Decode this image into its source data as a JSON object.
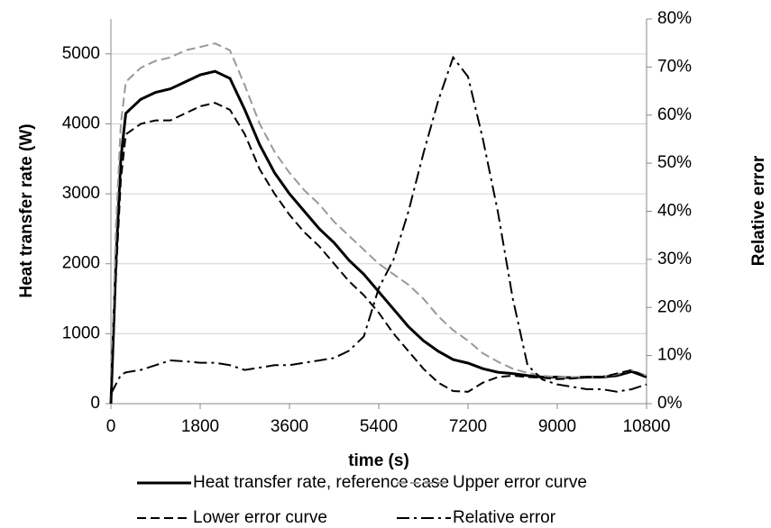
{
  "chart_data": {
    "type": "line",
    "xlabel": "time (s)",
    "ylabel": "Heat transfer rate (W)",
    "y2label": "Relative error",
    "x": [
      0,
      100,
      200,
      300,
      600,
      900,
      1200,
      1500,
      1800,
      2100,
      2400,
      2700,
      3000,
      3300,
      3600,
      3900,
      4200,
      4500,
      4800,
      5100,
      5400,
      5700,
      6000,
      6300,
      6600,
      6900,
      7200,
      7500,
      7800,
      8100,
      8400,
      8700,
      9000,
      9300,
      9600,
      9900,
      10200,
      10500,
      10800
    ],
    "series": [
      {
        "name": "Heat transfer rate, reference case",
        "color": "#000000",
        "style": "solid",
        "values": [
          0,
          2000,
          3500,
          4150,
          4350,
          4450,
          4500,
          4600,
          4700,
          4750,
          4650,
          4200,
          3700,
          3300,
          3000,
          2750,
          2500,
          2300,
          2050,
          1850,
          1600,
          1350,
          1100,
          900,
          750,
          630,
          580,
          500,
          450,
          430,
          400,
          380,
          380,
          370,
          380,
          380,
          400,
          460,
          380
        ]
      },
      {
        "name": "Upper error curve",
        "color": "#999999",
        "style": "dashed",
        "values": [
          0,
          2500,
          4000,
          4600,
          4800,
          4900,
          4950,
          5050,
          5100,
          5150,
          5050,
          4550,
          4000,
          3600,
          3300,
          3050,
          2850,
          2600,
          2400,
          2200,
          2000,
          1850,
          1700,
          1500,
          1250,
          1050,
          900,
          720,
          600,
          500,
          440,
          400,
          380,
          380,
          380,
          380,
          420,
          480,
          400
        ]
      },
      {
        "name": "Lower error curve",
        "color": "#000000",
        "style": "dashed",
        "values": [
          0,
          1800,
          3200,
          3850,
          4000,
          4050,
          4050,
          4150,
          4250,
          4300,
          4200,
          3850,
          3350,
          3000,
          2700,
          2450,
          2250,
          2000,
          1750,
          1550,
          1300,
          1000,
          750,
          500,
          300,
          180,
          170,
          300,
          380,
          400,
          380,
          370,
          350,
          360,
          380,
          380,
          430,
          480,
          380
        ]
      },
      {
        "name": "Relative error",
        "color": "#000000",
        "style": "dashdot",
        "axis": "y2",
        "values": [
          2,
          4,
          6,
          6.5,
          7,
          8,
          9,
          8.8,
          8.5,
          8.5,
          8,
          7,
          7.5,
          8,
          8,
          8.5,
          9,
          9.5,
          11,
          14,
          24,
          30,
          40,
          52,
          63,
          72,
          68,
          55,
          40,
          22,
          8,
          5,
          4,
          3.5,
          3,
          3,
          2.5,
          3,
          4
        ]
      }
    ],
    "xlim": [
      0,
      10800
    ],
    "xticks": [
      0,
      1800,
      3600,
      5400,
      7200,
      9000,
      10800
    ],
    "ylim": [
      0,
      5500
    ],
    "yticks": [
      0,
      1000,
      2000,
      3000,
      4000,
      5000
    ],
    "y2lim": [
      0,
      80
    ],
    "y2ticks": [
      {
        "value": 0,
        "label": "0%"
      },
      {
        "value": 10,
        "label": "10%"
      },
      {
        "value": 20,
        "label": "20%"
      },
      {
        "value": 30,
        "label": "30%"
      },
      {
        "value": 40,
        "label": "40%"
      },
      {
        "value": 50,
        "label": "50%"
      },
      {
        "value": 60,
        "label": "60%"
      },
      {
        "value": 70,
        "label": "70%"
      },
      {
        "value": 80,
        "label": "80%"
      }
    ],
    "grid": true,
    "legend": "bottom"
  }
}
